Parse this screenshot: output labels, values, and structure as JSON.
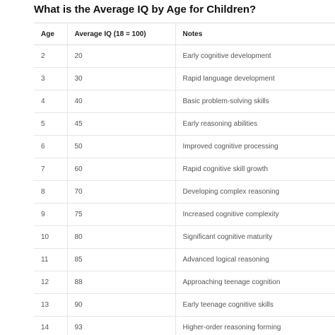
{
  "title": "What is the Average IQ by Age for Children?",
  "table": {
    "headers": [
      "Age",
      "Average IQ (18 = 100)",
      "Notes"
    ],
    "rows": [
      [
        2,
        20,
        "Early cognitive development"
      ],
      [
        3,
        30,
        "Rapid language development"
      ],
      [
        4,
        40,
        "Basic problem-solving skills"
      ],
      [
        5,
        45,
        "Early reasoning abilities"
      ],
      [
        6,
        50,
        "Improved cognitive processing"
      ],
      [
        7,
        60,
        "Rapid cognitive skill growth"
      ],
      [
        8,
        70,
        "Developing complex reasoning"
      ],
      [
        9,
        75,
        "Increased cognitive complexity"
      ],
      [
        10,
        80,
        "Significant cognitive maturity"
      ],
      [
        11,
        85,
        "Advanced logical reasoning"
      ],
      [
        12,
        88,
        "Approaching teenage cognition"
      ],
      [
        13,
        90,
        "Early teenage cognitive skills"
      ],
      [
        14,
        93,
        "Higher-order reasoning forming"
      ]
    ]
  }
}
